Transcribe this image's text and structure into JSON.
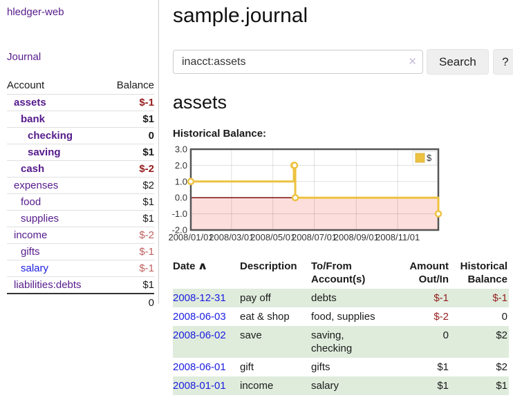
{
  "page": {
    "title": "sample.journal"
  },
  "sidebar": {
    "brand": "hledger-web",
    "journal_link": "Journal",
    "accounts": {
      "account_header": "Account",
      "balance_header": "Balance",
      "rows": [
        {
          "name": "assets",
          "balance": "$-1",
          "level": 1,
          "bold": true
        },
        {
          "name": "bank",
          "balance": "$1",
          "level": 2,
          "bold": true
        },
        {
          "name": "checking",
          "balance": "0",
          "level": 3,
          "bold": true
        },
        {
          "name": "saving",
          "balance": "$1",
          "level": 3,
          "bold": true
        },
        {
          "name": "cash",
          "balance": "$-2",
          "level": 2,
          "bold": true
        },
        {
          "name": "expenses",
          "balance": "$2",
          "level": 1,
          "bold": false
        },
        {
          "name": "food",
          "balance": "$1",
          "level": 2,
          "bold": false
        },
        {
          "name": "supplies",
          "balance": "$1",
          "level": 2,
          "bold": false
        },
        {
          "name": "income",
          "balance": "$-2",
          "level": 1,
          "bold": false
        },
        {
          "name": "gifts",
          "balance": "$-1",
          "level": 2,
          "bold": false
        },
        {
          "name": "salary",
          "balance": "$-1",
          "level": 2,
          "bold": false,
          "unvisited": true
        },
        {
          "name": "liabilities:debts",
          "balance": "$1",
          "level": 1,
          "bold": false
        }
      ],
      "total": "0"
    }
  },
  "search": {
    "value": "inacct:assets",
    "clear_icon": "✕",
    "search_button": "Search",
    "help_button": "?"
  },
  "account_view": {
    "heading": "assets",
    "chart_title": "Historical Balance:"
  },
  "chart_data": {
    "type": "line",
    "step": true,
    "title": "Historical Balance:",
    "series": [
      {
        "name": "$",
        "points": [
          [
            "2008-01-01",
            1
          ],
          [
            "2008-06-01",
            2
          ],
          [
            "2008-06-02",
            2
          ],
          [
            "2008-06-03",
            0
          ],
          [
            "2008-12-31",
            -1
          ]
        ]
      }
    ],
    "legend": [
      {
        "label": "$",
        "color": "#EDC240"
      }
    ],
    "legend_position": "top-right",
    "x_min": "2008-01-01",
    "x_max": "2008-12-31",
    "x_tick_labels": [
      "2008/01/01",
      "2008/03/01",
      "2008/05/01",
      "2008/07/01",
      "2008/09/01",
      "2008/11/01"
    ],
    "y_ticks": [
      "3.0",
      "2.0",
      "1.0",
      "0.0",
      "-1.0",
      "-2.0"
    ],
    "ylim": [
      -2,
      3
    ],
    "grid": true,
    "line_color": "#EDC240",
    "negative_region_fill": "#FCDEDC",
    "zero_line_color": "#7A0C0C",
    "plot_border_color": "#545454"
  },
  "register": {
    "headers": {
      "date": "Date",
      "sort_asc_icon": "∧",
      "description": "Description",
      "accounts": "To/From Account(s)",
      "amount": "Amount Out/In",
      "balance": "Historical Balance"
    },
    "rows": [
      {
        "date": "2008-12-31",
        "description": "pay off",
        "accounts": "debts",
        "amount": "$-1",
        "balance": "$-1"
      },
      {
        "date": "2008-06-03",
        "description": "eat & shop",
        "accounts": "food, supplies",
        "amount": "$-2",
        "balance": "0"
      },
      {
        "date": "2008-06-02",
        "description": "save",
        "accounts": "saving, checking",
        "amount": "0",
        "balance": "$2"
      },
      {
        "date": "2008-06-01",
        "description": "gift",
        "accounts": "gifts",
        "amount": "$1",
        "balance": "$2"
      },
      {
        "date": "2008-01-01",
        "description": "income",
        "accounts": "salary",
        "amount": "$1",
        "balance": "$1"
      }
    ]
  },
  "colors": {
    "visited_link": "#551A8B",
    "link": "#1B1BE0",
    "negative_strong": "#941D1D",
    "negative_soft": "#C06060",
    "row_highlight_green": "#DFECDC",
    "button_bg": "#EFEFEF",
    "divider": "#CCCCCC"
  }
}
